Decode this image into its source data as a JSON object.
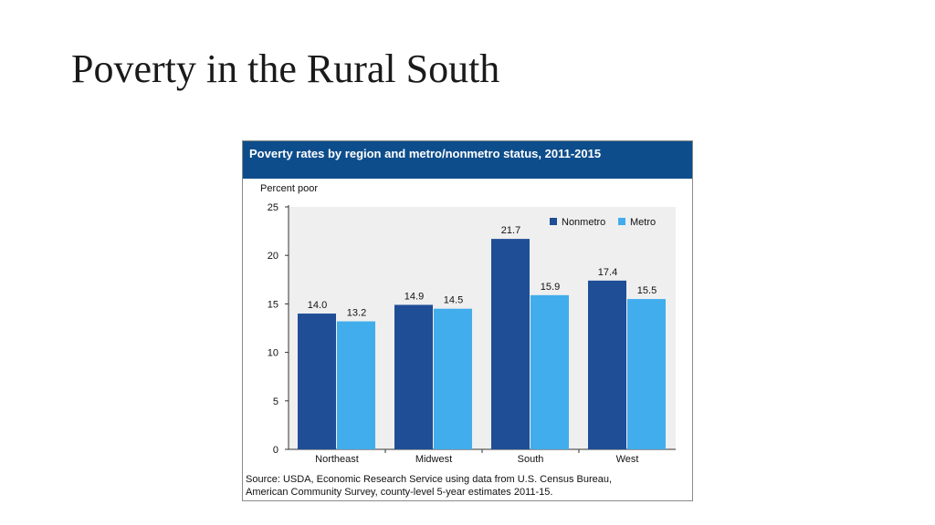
{
  "slide": {
    "title": "Poverty in the Rural South"
  },
  "figure": {
    "header": "Poverty rates by region and metro/nonmetro status, 2011-2015",
    "source_line1": "Source: USDA, Economic Research Service using data from U.S. Census Bureau,",
    "source_line2": "American Community Survey, county-level 5-year estimates 2011-15."
  },
  "colors": {
    "header_bg": "#0e4d8b",
    "nonmetro": "#1f4e96",
    "metro": "#41adec",
    "plot_bg": "#efefef"
  },
  "chart_data": {
    "type": "bar",
    "title": "Poverty rates by region and metro/nonmetro status, 2011-2015",
    "ylabel": "Percent poor",
    "xlabel": "",
    "ylim": [
      0,
      25
    ],
    "yticks": [
      0,
      5,
      10,
      15,
      20,
      25
    ],
    "categories": [
      "Northeast",
      "Midwest",
      "South",
      "West"
    ],
    "series": [
      {
        "name": "Nonmetro",
        "values": [
          14.0,
          14.9,
          21.7,
          17.4
        ],
        "labels": [
          "14.0",
          "14.9",
          "21.7",
          "17.4"
        ]
      },
      {
        "name": "Metro",
        "values": [
          13.2,
          14.5,
          15.9,
          15.5
        ],
        "labels": [
          "13.2",
          "14.5",
          "15.9",
          "15.5"
        ]
      }
    ],
    "legend_position": "top-right",
    "grid": false
  }
}
